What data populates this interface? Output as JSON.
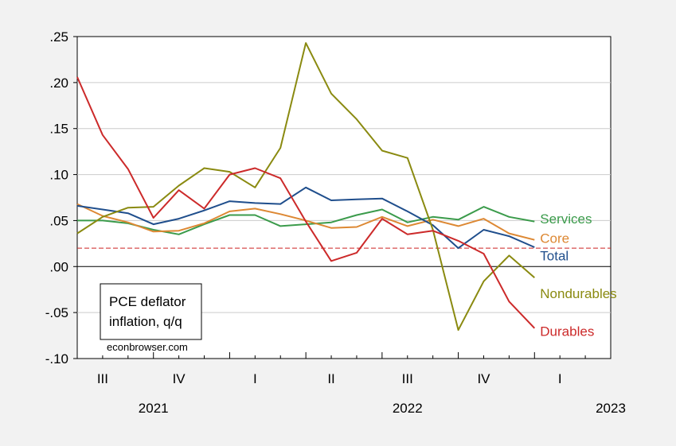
{
  "chart_data": {
    "type": "line",
    "title": "",
    "ylim": [
      -0.1,
      0.25
    ],
    "yticks": [
      -0.1,
      -0.05,
      0.0,
      0.05,
      0.1,
      0.15,
      0.2,
      0.25
    ],
    "ytick_labels": [
      "-.10",
      "-.05",
      ".00",
      ".05",
      ".10",
      ".15",
      ".20",
      ".25"
    ],
    "x": [
      "2021-07",
      "2021-08",
      "2021-09",
      "2021-10",
      "2021-11",
      "2021-12",
      "2022-01",
      "2022-02",
      "2022-03",
      "2022-04",
      "2022-05",
      "2022-06",
      "2022-07",
      "2022-08",
      "2022-09",
      "2022-10",
      "2022-11",
      "2022-12",
      "2023-01"
    ],
    "xlim": [
      "2021-07",
      "2023-04"
    ],
    "quarter_labels": [
      {
        "date": "2021-08",
        "label": "III"
      },
      {
        "date": "2021-11",
        "label": "IV"
      },
      {
        "date": "2022-02",
        "label": "I"
      },
      {
        "date": "2022-05",
        "label": "II"
      },
      {
        "date": "2022-08",
        "label": "III"
      },
      {
        "date": "2022-11",
        "label": "IV"
      },
      {
        "date": "2023-02",
        "label": "I"
      }
    ],
    "year_labels": [
      {
        "date": "2021-10",
        "label": "2021"
      },
      {
        "date": "2022-08",
        "label": "2022"
      },
      {
        "date": "2023-04",
        "label": "2023"
      }
    ],
    "reference_line": {
      "value": 0.02,
      "color": "#cc2222",
      "style": "dashed"
    },
    "zero_line": true,
    "grid": "horizontal",
    "series": [
      {
        "name": "Services",
        "color": "#3b9b4b",
        "values": [
          0.05,
          0.05,
          0.047,
          0.04,
          0.035,
          0.046,
          0.056,
          0.056,
          0.044,
          0.046,
          0.048,
          0.056,
          0.062,
          0.048,
          0.054,
          0.051,
          0.065,
          0.054,
          0.049
        ]
      },
      {
        "name": "Core",
        "color": "#dd8833",
        "values": [
          0.068,
          0.055,
          0.048,
          0.038,
          0.039,
          0.047,
          0.06,
          0.063,
          0.057,
          0.05,
          0.042,
          0.043,
          0.054,
          0.044,
          0.051,
          0.044,
          0.052,
          0.036,
          0.029
        ]
      },
      {
        "name": "Total",
        "color": "#1f4e8c",
        "values": [
          0.066,
          0.062,
          0.058,
          0.046,
          0.052,
          0.061,
          0.071,
          0.069,
          0.068,
          0.086,
          0.072,
          0.073,
          0.074,
          0.06,
          0.045,
          0.02,
          0.04,
          0.033,
          0.021
        ]
      },
      {
        "name": "Nondurables",
        "color": "#8a8a10",
        "values": [
          0.036,
          0.054,
          0.064,
          0.065,
          0.088,
          0.107,
          0.103,
          0.086,
          0.129,
          0.243,
          0.188,
          0.16,
          0.126,
          0.118,
          0.04,
          -0.069,
          -0.016,
          0.012,
          -0.012
        ]
      },
      {
        "name": "Durables",
        "color": "#cc2a2a",
        "values": [
          0.206,
          0.143,
          0.106,
          0.053,
          0.083,
          0.063,
          0.1,
          0.107,
          0.096,
          0.049,
          0.006,
          0.015,
          0.052,
          0.035,
          0.039,
          0.028,
          0.014,
          -0.038,
          -0.067
        ]
      }
    ],
    "legend_labels": [
      {
        "series": "Services",
        "anchor_value": 0.052
      },
      {
        "series": "Core",
        "anchor_value": 0.031
      },
      {
        "series": "Total",
        "anchor_value": 0.012
      },
      {
        "series": "Nondurables",
        "anchor_value": -0.029
      },
      {
        "series": "Durables",
        "anchor_value": -0.07
      }
    ],
    "annotation_box": {
      "line1": "PCE deflator",
      "line2": "inflation, q/q"
    },
    "source": "econbrowser.com"
  }
}
